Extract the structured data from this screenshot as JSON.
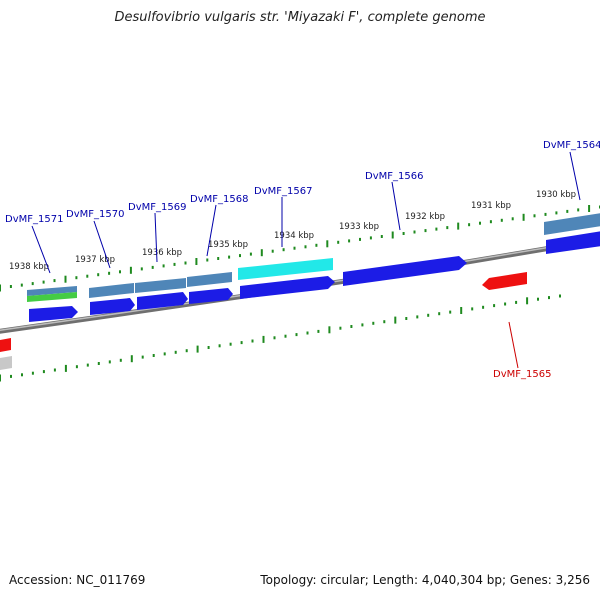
{
  "title": "Desulfovibrio vulgaris str. 'Miyazaki F', complete genome",
  "footer": {
    "accession": "Accession: NC_011769",
    "summary": "Topology: circular; Length: 4,040,304 bp; Genes: 3,256"
  },
  "colors": {
    "backbone": "#8a8a8a",
    "cds_forward": "#1c1ce6",
    "cds_reverse": "#ee1111",
    "feature_steelblue": "#4f86b8",
    "feature_cyan": "#22e8e8",
    "feature_green": "#44cc44",
    "feature_gray": "#c8c8c8",
    "tick": "#1f8a1f",
    "label_forward": "#0000aa",
    "label_reverse": "#cc0000",
    "scale_text": "#222222"
  },
  "scale_labels": [
    "1938 kbp",
    "1937 kbp",
    "1936 kbp",
    "1935 kbp",
    "1934 kbp",
    "1933 kbp",
    "1932 kbp",
    "1931 kbp",
    "1930 kbp"
  ],
  "gene_labels": [
    {
      "name": "DvMF_1571",
      "strand": "forward"
    },
    {
      "name": "DvMF_1570",
      "strand": "forward"
    },
    {
      "name": "DvMF_1569",
      "strand": "forward"
    },
    {
      "name": "DvMF_1568",
      "strand": "forward"
    },
    {
      "name": "DvMF_1567",
      "strand": "forward"
    },
    {
      "name": "DvMF_1566",
      "strand": "forward"
    },
    {
      "name": "DvMF_1564",
      "strand": "forward"
    },
    {
      "name": "DvMF_1565",
      "strand": "reverse"
    }
  ]
}
